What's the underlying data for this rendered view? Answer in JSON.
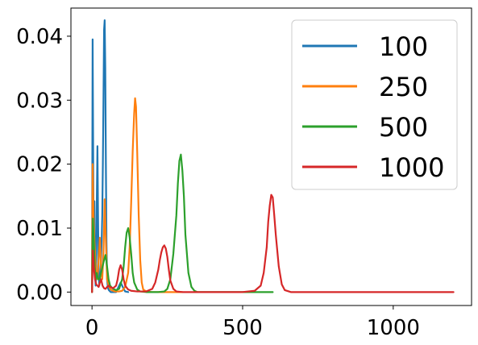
{
  "chart_data": {
    "type": "line",
    "title": "",
    "xlabel": "",
    "ylabel": "",
    "xlim": [
      -70,
      1260
    ],
    "ylim": [
      -0.0021,
      0.0444
    ],
    "xticks": [
      0,
      500,
      1000
    ],
    "xtick_labels": [
      "0",
      "500",
      "1000"
    ],
    "yticks": [
      0.0,
      0.01,
      0.02,
      0.03,
      0.04
    ],
    "ytick_labels": [
      "0.00",
      "0.01",
      "0.02",
      "0.03",
      "0.04"
    ],
    "grid": false,
    "legend_position": "top-right",
    "series": [
      {
        "name": "100",
        "color": "#1f77b4",
        "x": [
          0,
          2,
          4,
          6,
          8,
          10,
          12,
          14,
          16,
          18,
          20,
          22,
          24,
          26,
          28,
          30,
          32,
          34,
          36,
          38,
          40,
          42,
          44,
          46,
          48,
          50,
          52,
          54,
          56,
          58,
          60,
          62,
          64,
          66,
          68,
          70,
          75,
          80,
          85,
          90,
          95,
          100,
          105,
          110,
          120
        ],
        "y": [
          0.0,
          0.0395,
          0.02,
          0.005,
          0.0142,
          0.003,
          0.001,
          0.004,
          0.015,
          0.0228,
          0.012,
          0.003,
          0.001,
          0.002,
          0.003,
          0.005,
          0.008,
          0.012,
          0.02,
          0.03,
          0.041,
          0.0425,
          0.035,
          0.02,
          0.008,
          0.002,
          0.001,
          0.0005,
          0.0003,
          0.0002,
          0.0001,
          0.0,
          0.0,
          0.0,
          0.0,
          0.0,
          0.0,
          0.0,
          0.0005,
          0.001,
          0.0015,
          0.001,
          0.0005,
          0.0001,
          0.0
        ]
      },
      {
        "name": "250",
        "color": "#ff7f0e",
        "x": [
          0,
          2,
          5,
          8,
          11,
          14,
          18,
          22,
          26,
          30,
          34,
          38,
          42,
          46,
          50,
          55,
          60,
          65,
          70,
          75,
          80,
          90,
          100,
          110,
          120,
          125,
          130,
          135,
          140,
          143,
          146,
          150,
          155,
          160,
          165,
          170,
          180,
          200,
          300
        ],
        "y": [
          0.0,
          0.02,
          0.012,
          0.008,
          0.005,
          0.003,
          0.002,
          0.005,
          0.0085,
          0.004,
          0.002,
          0.006,
          0.0145,
          0.008,
          0.002,
          0.001,
          0.0005,
          0.0003,
          0.0002,
          0.0001,
          0.0001,
          0.0001,
          0.0002,
          0.0008,
          0.003,
          0.007,
          0.014,
          0.022,
          0.028,
          0.0303,
          0.029,
          0.022,
          0.012,
          0.005,
          0.0015,
          0.0004,
          0.0001,
          0.0,
          0.0
        ]
      },
      {
        "name": "500",
        "color": "#2ca02c",
        "x": [
          0,
          3,
          6,
          9,
          12,
          16,
          20,
          25,
          30,
          35,
          40,
          45,
          50,
          55,
          60,
          70,
          80,
          90,
          100,
          105,
          110,
          115,
          120,
          125,
          130,
          135,
          140,
          150,
          160,
          180,
          200,
          220,
          240,
          250,
          260,
          270,
          280,
          285,
          290,
          295,
          300,
          305,
          310,
          320,
          330,
          340,
          350,
          400,
          500,
          600
        ],
        "y": [
          0.0,
          0.0115,
          0.008,
          0.004,
          0.002,
          0.003,
          0.002,
          0.002,
          0.003,
          0.004,
          0.005,
          0.0058,
          0.004,
          0.002,
          0.001,
          0.0005,
          0.0003,
          0.0005,
          0.002,
          0.004,
          0.007,
          0.0093,
          0.01,
          0.0085,
          0.006,
          0.003,
          0.0015,
          0.0004,
          0.0001,
          0.0,
          0.0,
          0.0,
          0.0001,
          0.0005,
          0.002,
          0.006,
          0.012,
          0.017,
          0.0205,
          0.0215,
          0.019,
          0.015,
          0.009,
          0.003,
          0.0008,
          0.0002,
          0.0,
          0.0,
          0.0,
          0.0
        ]
      },
      {
        "name": "1000",
        "color": "#d62728",
        "x": [
          0,
          3,
          6,
          10,
          14,
          18,
          22,
          26,
          30,
          35,
          40,
          45,
          50,
          55,
          60,
          70,
          80,
          85,
          90,
          95,
          100,
          105,
          110,
          120,
          130,
          150,
          180,
          200,
          210,
          220,
          225,
          230,
          235,
          240,
          245,
          250,
          255,
          260,
          270,
          280,
          300,
          400,
          500,
          540,
          560,
          570,
          580,
          585,
          590,
          595,
          600,
          605,
          610,
          620,
          630,
          640,
          660,
          700,
          800,
          900,
          1000,
          1100,
          1200
        ],
        "y": [
          0.0,
          0.0065,
          0.004,
          0.002,
          0.0012,
          0.001,
          0.0008,
          0.0015,
          0.002,
          0.001,
          0.0006,
          0.0005,
          0.0008,
          0.001,
          0.0008,
          0.0006,
          0.001,
          0.002,
          0.0035,
          0.0042,
          0.0035,
          0.002,
          0.001,
          0.0004,
          0.0002,
          0.0001,
          0.0001,
          0.0005,
          0.0015,
          0.0035,
          0.005,
          0.0062,
          0.007,
          0.0073,
          0.0068,
          0.0055,
          0.0035,
          0.0018,
          0.0005,
          0.0001,
          0.0,
          0.0,
          0.0,
          0.0002,
          0.001,
          0.003,
          0.007,
          0.011,
          0.0135,
          0.0152,
          0.0148,
          0.012,
          0.009,
          0.004,
          0.0012,
          0.0003,
          0.0,
          0.0,
          0.0,
          0.0,
          0.0,
          0.0,
          0.0
        ]
      }
    ]
  }
}
